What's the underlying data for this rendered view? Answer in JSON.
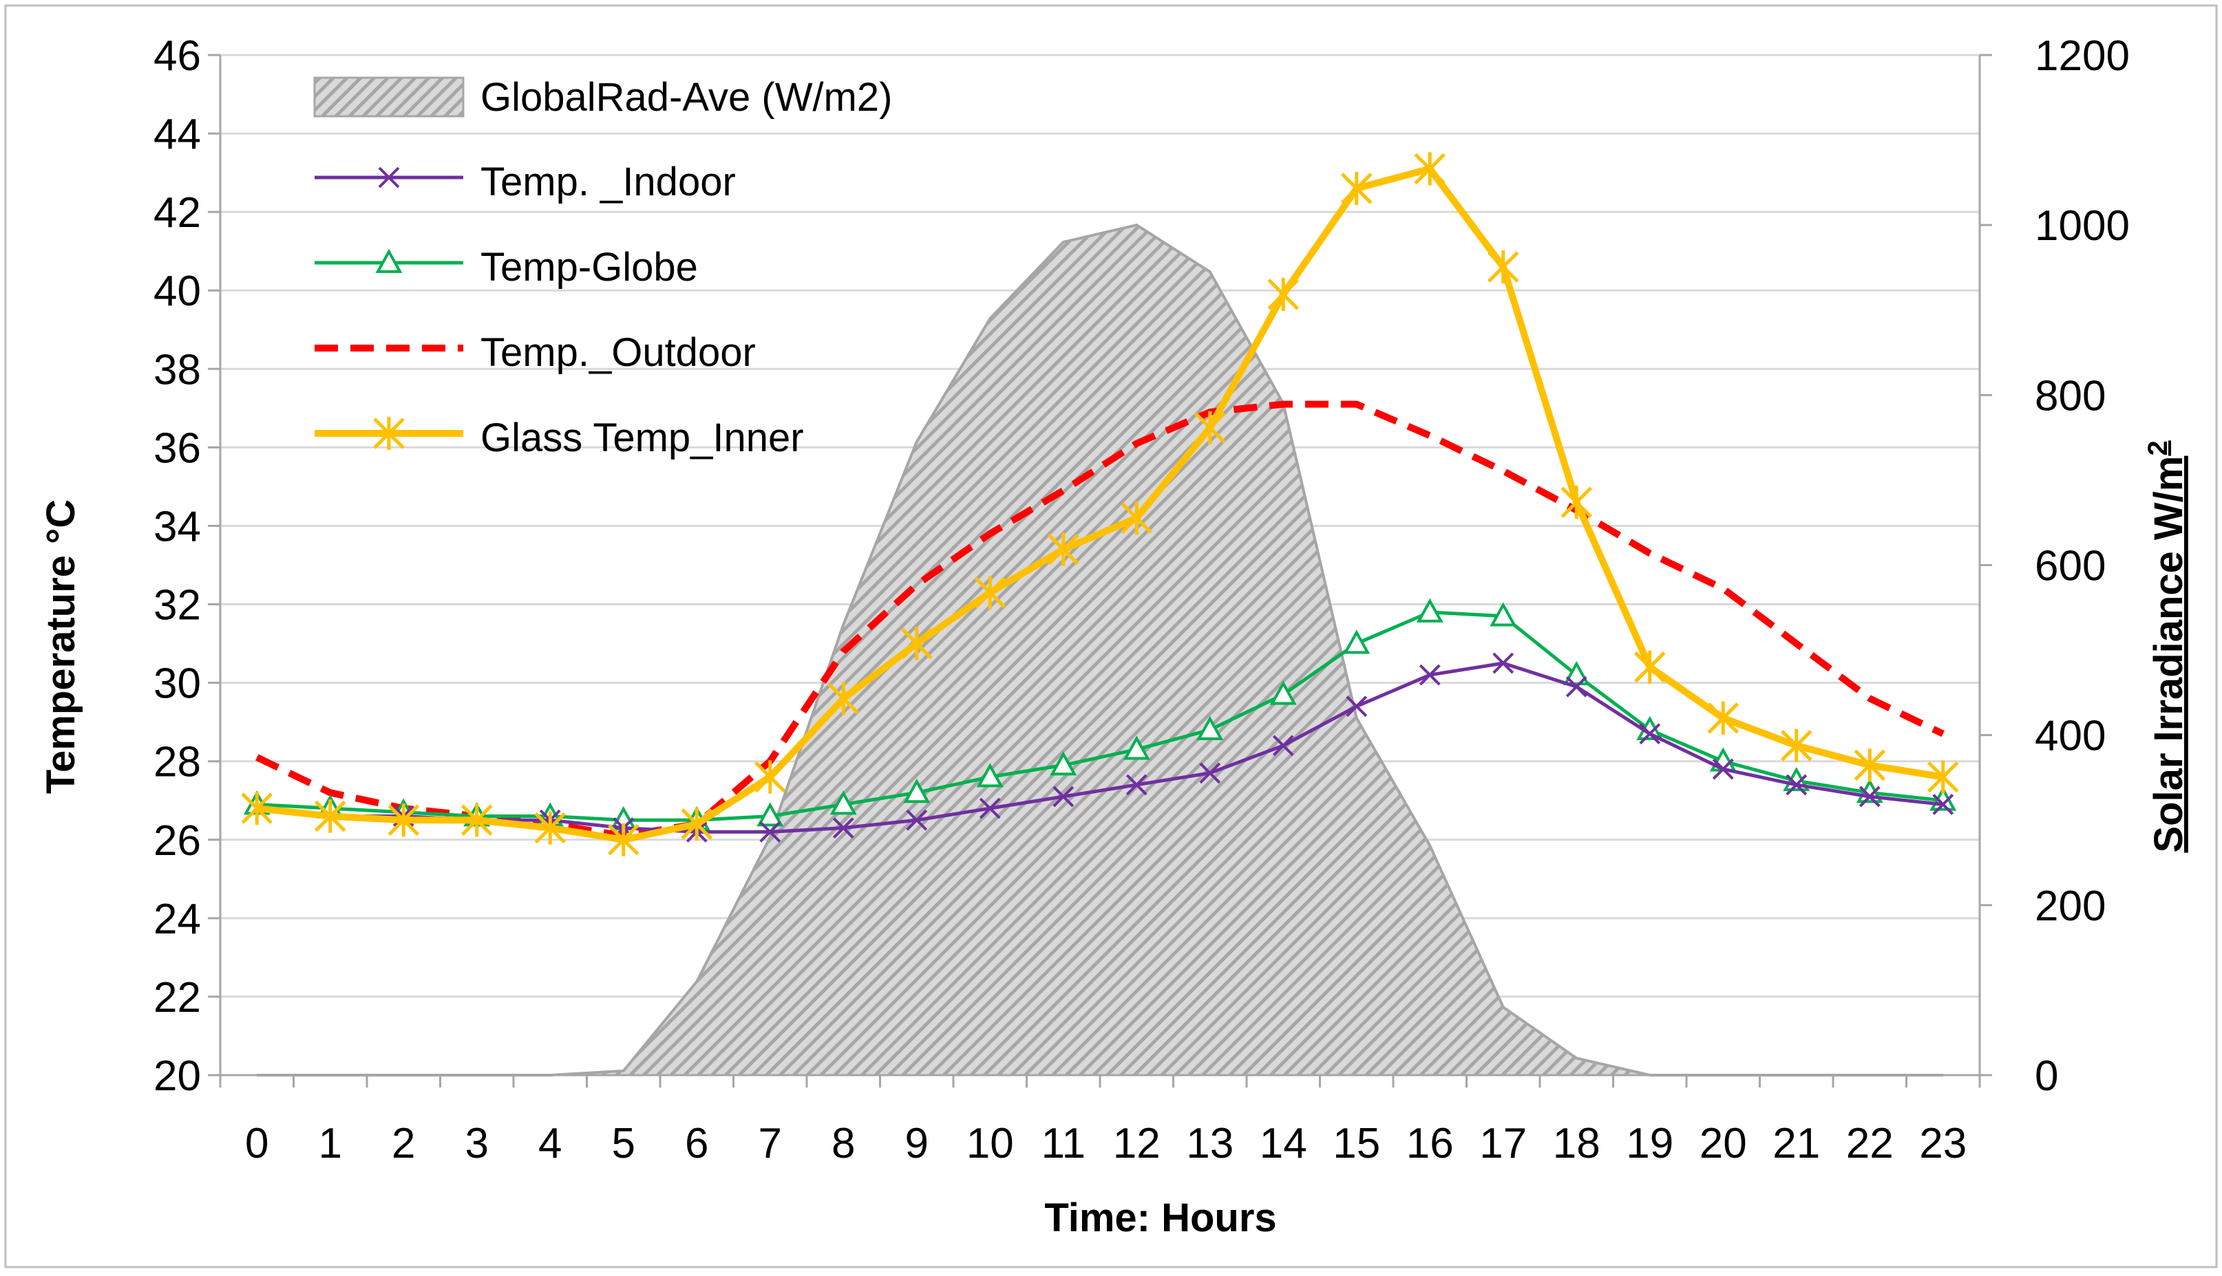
{
  "chart_data": {
    "type": "line",
    "title": "",
    "xlabel": "Time: Hours",
    "ylabel": "Temperature °C",
    "y2label_main": "Solar Irradiance W/m",
    "y2label_sup": "2",
    "x": [
      0,
      1,
      2,
      3,
      4,
      5,
      6,
      7,
      8,
      9,
      10,
      11,
      12,
      13,
      14,
      15,
      16,
      17,
      18,
      19,
      20,
      21,
      22,
      23
    ],
    "x_tick_labels": [
      "0",
      "1",
      "2",
      "3",
      "4",
      "5",
      "6",
      "7",
      "8",
      "9",
      "10",
      "11",
      "12",
      "13",
      "14",
      "15",
      "16",
      "17",
      "18",
      "19",
      "20",
      "21",
      "22",
      "23"
    ],
    "ylim": [
      20,
      46
    ],
    "y_ticks": [
      20,
      22,
      24,
      26,
      28,
      30,
      32,
      34,
      36,
      38,
      40,
      42,
      44,
      46
    ],
    "y_tick_labels": [
      "20",
      "22",
      "24",
      "26",
      "28",
      "30",
      "32",
      "34",
      "36",
      "38",
      "40",
      "42",
      "44",
      "46"
    ],
    "y2lim": [
      0,
      1200
    ],
    "y2_ticks": [
      0,
      200,
      400,
      600,
      800,
      1000,
      1200
    ],
    "y2_tick_labels": [
      "0",
      "200",
      "400",
      "600",
      "800",
      "1000",
      "1200"
    ],
    "grid": true,
    "legend_position": "top-left",
    "area": {
      "name": "GlobalRad-Ave (W/m2)",
      "axis": "right",
      "values": [
        0,
        0,
        0,
        0,
        0,
        5,
        110,
        280,
        530,
        745,
        890,
        980,
        1000,
        945,
        790,
        420,
        270,
        80,
        20,
        0,
        0,
        0,
        0,
        0
      ],
      "fill": "#d9d9d9",
      "hatch": "#a6a6a6",
      "stroke": "#a6a6a6"
    },
    "series": [
      {
        "name": "Temp. _Indoor",
        "axis": "left",
        "color": "#7030a0",
        "marker": "x",
        "dash": false,
        "values": [
          26.8,
          26.6,
          26.6,
          26.5,
          26.5,
          26.3,
          26.2,
          26.2,
          26.3,
          26.5,
          26.8,
          27.1,
          27.4,
          27.7,
          28.4,
          29.4,
          30.2,
          30.5,
          29.9,
          28.7,
          27.8,
          27.4,
          27.1,
          26.9
        ]
      },
      {
        "name": "Temp-Globe",
        "axis": "left",
        "color": "#00b050",
        "marker": "triangle",
        "dash": false,
        "values": [
          26.9,
          26.8,
          26.7,
          26.6,
          26.6,
          26.5,
          26.5,
          26.6,
          26.9,
          27.2,
          27.6,
          27.9,
          28.3,
          28.8,
          29.7,
          31.0,
          31.8,
          31.7,
          30.2,
          28.8,
          28.0,
          27.5,
          27.2,
          27.0
        ]
      },
      {
        "name": "Temp._Outdoor",
        "axis": "left",
        "color": "#ff0000",
        "marker": "none",
        "dash": true,
        "values": [
          28.1,
          27.2,
          26.8,
          26.6,
          26.4,
          26.1,
          26.4,
          28.0,
          30.8,
          32.5,
          33.8,
          34.9,
          36.1,
          36.9,
          37.1,
          37.1,
          36.3,
          35.4,
          34.4,
          33.3,
          32.4,
          31.0,
          29.6,
          28.7
        ]
      },
      {
        "name": "Glass Temp_Inner",
        "axis": "left",
        "color": "#ffc000",
        "marker": "asterisk",
        "dash": false,
        "values": [
          26.8,
          26.6,
          26.5,
          26.5,
          26.3,
          26.0,
          26.4,
          27.6,
          29.6,
          31.0,
          32.3,
          33.4,
          34.2,
          36.5,
          39.9,
          42.6,
          43.1,
          40.6,
          34.6,
          30.4,
          29.1,
          28.4,
          27.9,
          27.6
        ]
      }
    ]
  }
}
